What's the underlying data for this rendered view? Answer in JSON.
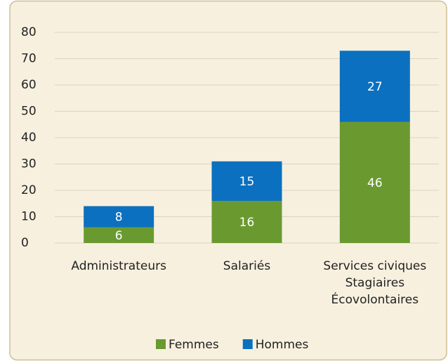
{
  "chart_data": {
    "type": "stacked_bar",
    "categories": [
      "Administrateurs",
      "Salariés",
      "Services civiques\nStagiaires\nÉcovolontaires"
    ],
    "series": [
      {
        "name": "Femmes",
        "color": "#6a9a2f",
        "values": [
          6,
          16,
          46
        ]
      },
      {
        "name": "Hommes",
        "color": "#0b70bf",
        "values": [
          8,
          15,
          27
        ]
      }
    ],
    "ylim": [
      0,
      80
    ],
    "yticks": [
      0,
      10,
      20,
      30,
      40,
      50,
      60,
      70,
      80
    ],
    "grid": true,
    "legend": "bottom"
  }
}
